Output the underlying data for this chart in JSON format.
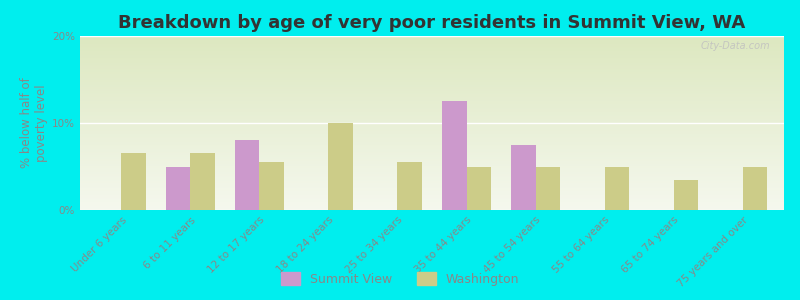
{
  "title": "Breakdown by age of very poor residents in Summit View, WA",
  "ylabel": "% below half of\npoverty level",
  "categories": [
    "Under 6 years",
    "6 to 11 years",
    "12 to 17 years",
    "18 to 24 years",
    "25 to 34 years",
    "35 to 44 years",
    "45 to 54 years",
    "55 to 64 years",
    "65 to 74 years",
    "75 years and over"
  ],
  "summit_view": [
    0,
    5.0,
    8.0,
    0,
    0,
    12.5,
    7.5,
    0,
    0,
    0
  ],
  "washington": [
    6.5,
    6.5,
    5.5,
    10.0,
    5.5,
    5.0,
    5.0,
    5.0,
    3.5,
    5.0
  ],
  "summit_view_color": "#cc99cc",
  "washington_color": "#cccc88",
  "background_outer": "#00eeee",
  "background_inner_top": "#dde8c0",
  "background_inner_bottom": "#f5f8ee",
  "ylim": [
    0,
    20
  ],
  "yticks": [
    0,
    10,
    20
  ],
  "ytick_labels": [
    "0%",
    "10%",
    "20%"
  ],
  "bar_width": 0.35,
  "title_fontsize": 13,
  "label_fontsize": 8.5,
  "tick_fontsize": 7.5,
  "watermark": "City-Data.com"
}
